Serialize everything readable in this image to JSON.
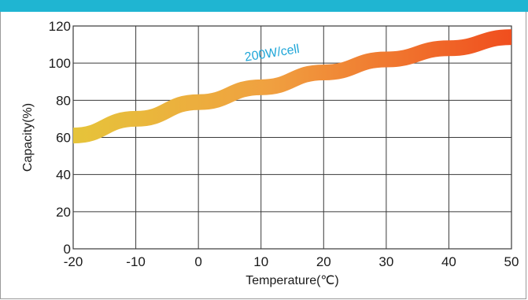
{
  "chart_data": {
    "type": "line",
    "title": "",
    "xlabel": "Temperature(℃)",
    "ylabel": "Capacity(%)",
    "xlim": [
      -20,
      50
    ],
    "ylim": [
      0,
      120
    ],
    "xticks": [
      -20,
      -10,
      0,
      10,
      20,
      30,
      40,
      50
    ],
    "yticks": [
      0,
      20,
      40,
      60,
      80,
      100,
      120
    ],
    "grid": true,
    "legend": "none",
    "series": [
      {
        "x": [
          -20,
          -10,
          0,
          10,
          20,
          30,
          40,
          50
        ],
        "y": [
          61,
          70,
          79,
          87,
          95,
          102,
          108,
          114
        ],
        "color_start": "#e6c43a",
        "color_end": "#f04e1e"
      }
    ],
    "annotations": [
      {
        "text": "200W/cell",
        "x": 7.5,
        "y": 101,
        "color": "#1fa6d8"
      }
    ]
  },
  "colors": {
    "header_bar": "#1fb5d2",
    "grid": "#3a3a3a"
  }
}
